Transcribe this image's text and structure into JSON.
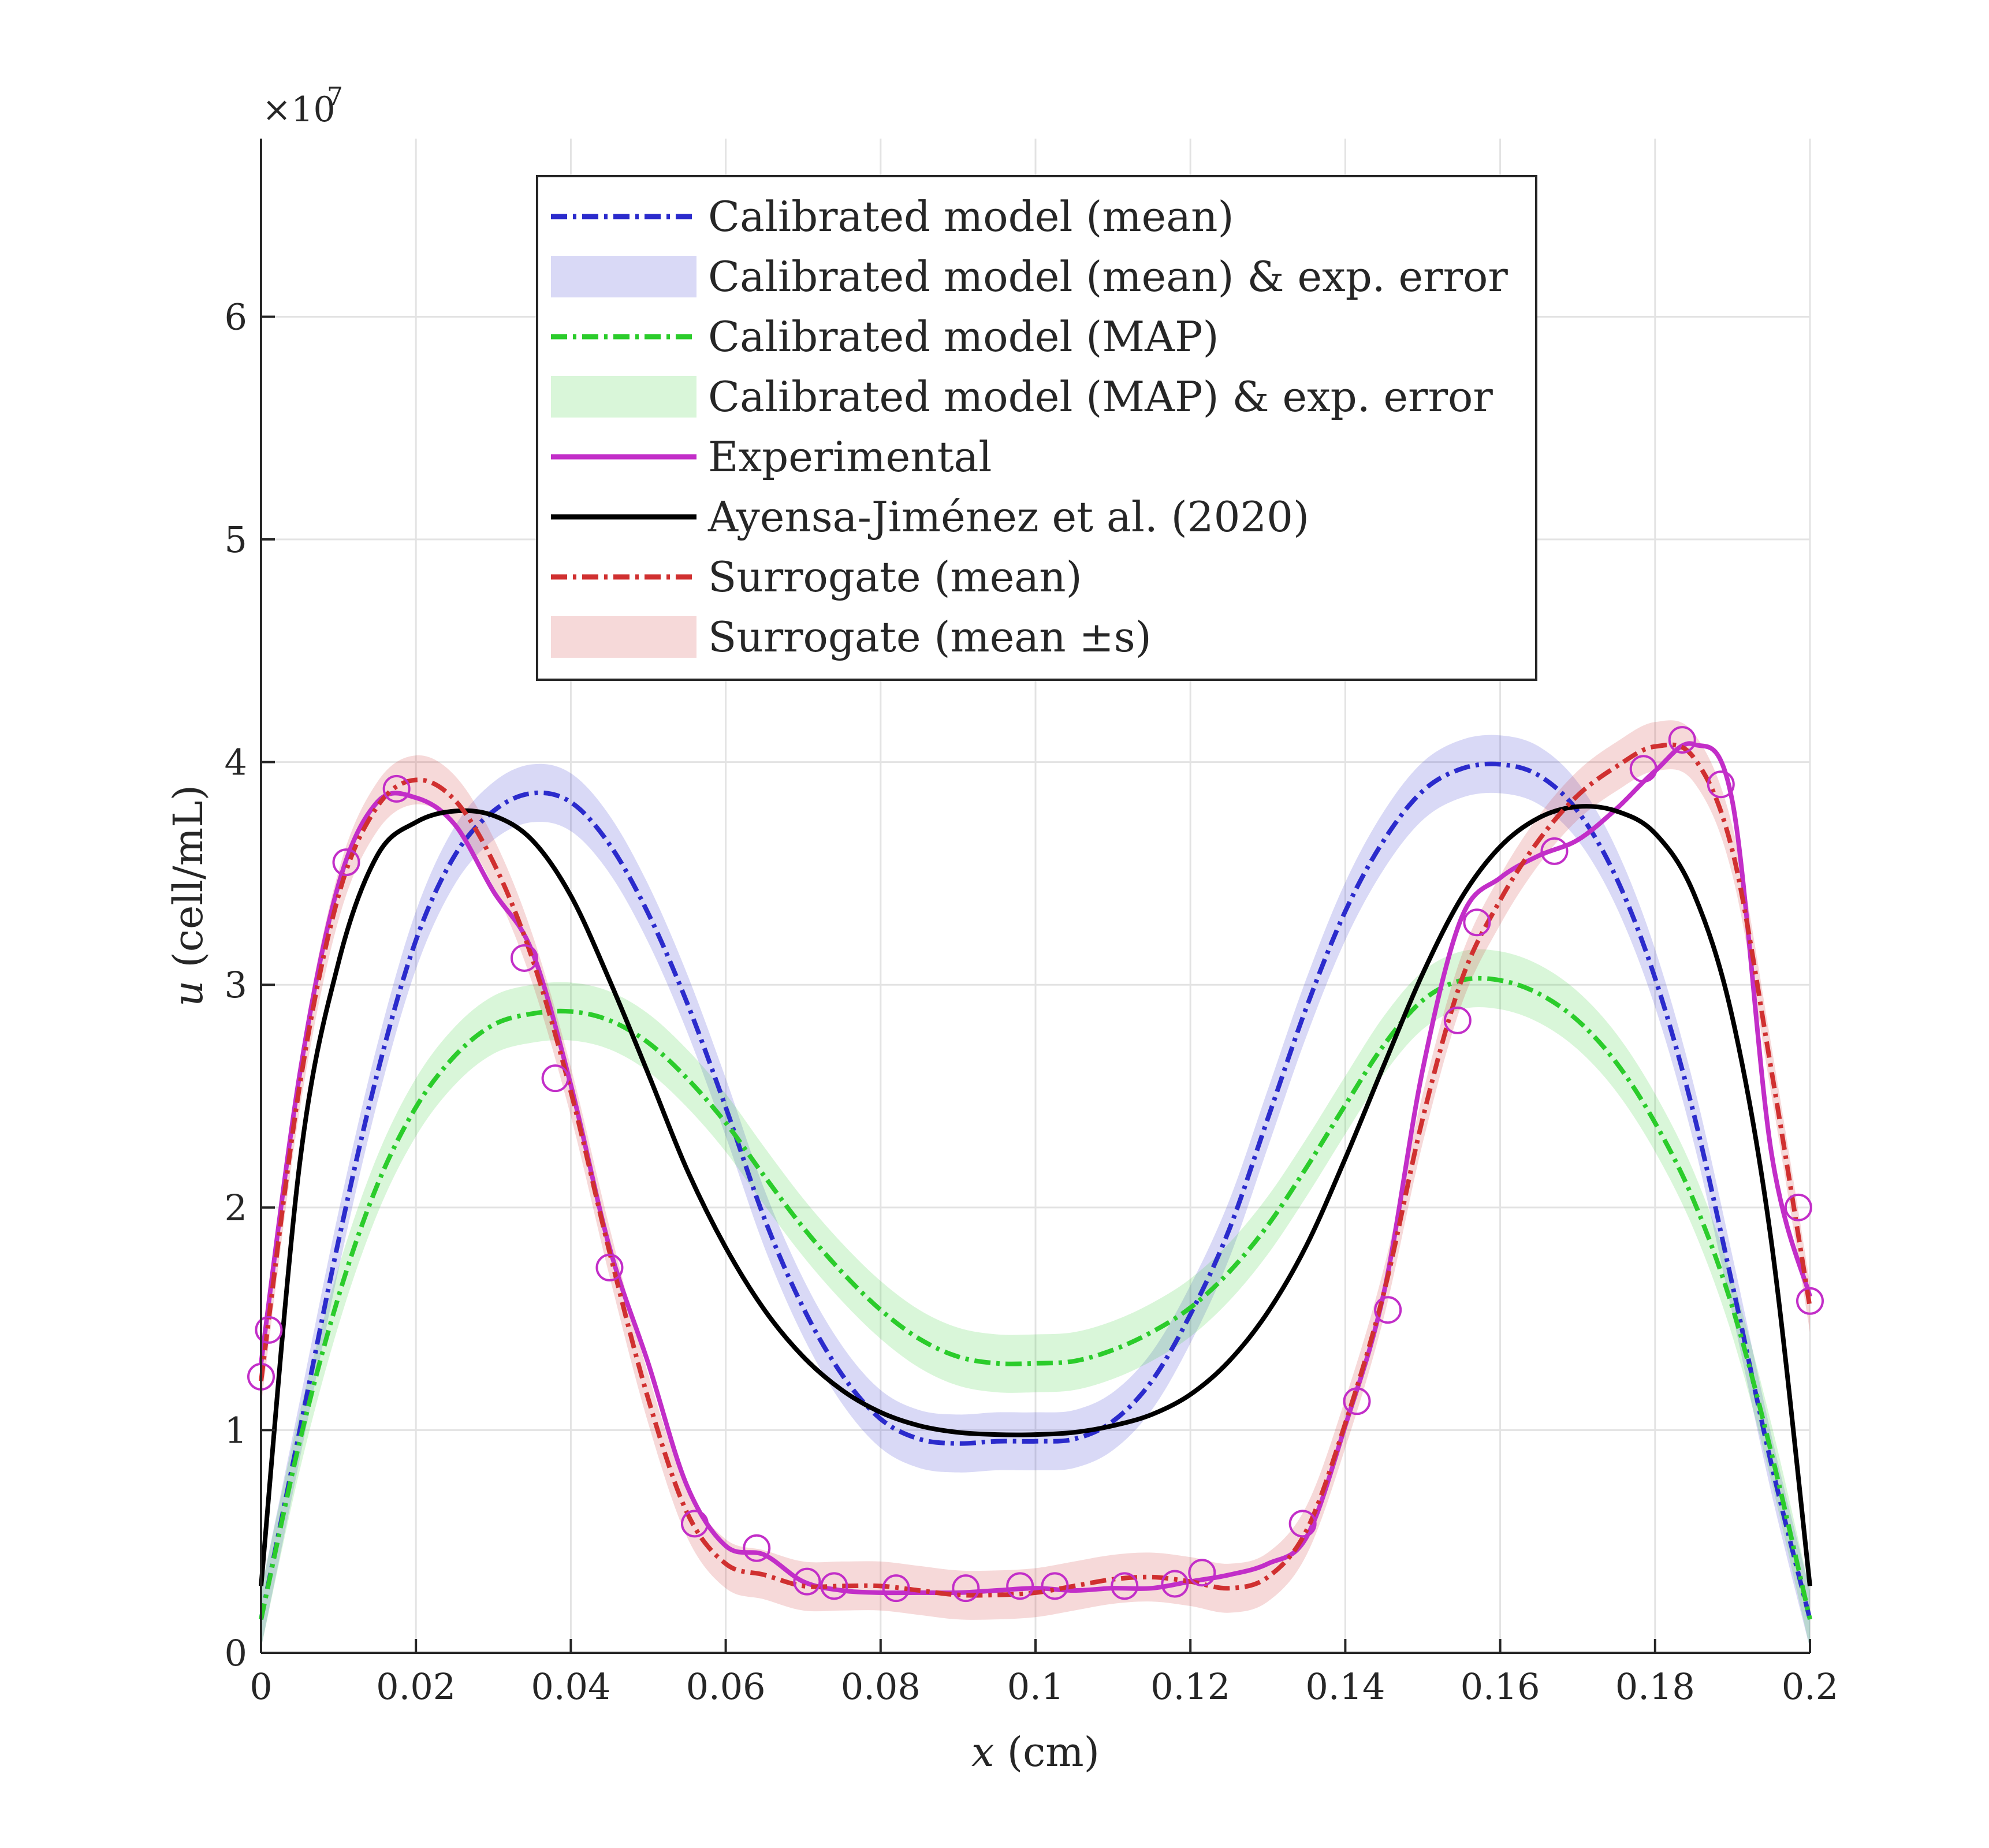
{
  "chart_data": {
    "type": "line",
    "title": "",
    "xlabel": "x (cm)",
    "xlabel_var": "x",
    "xlabel_unit": "(cm)",
    "ylabel": "u (cell/mL)",
    "ylabel_var": "u",
    "ylabel_unit": "(cell/mL)",
    "y_exponent_label": "×10",
    "y_exponent_power": "7",
    "xlim": [
      0,
      0.2
    ],
    "ylim": [
      0,
      6.8
    ],
    "grid": true,
    "legend_position": "top-center",
    "x_ticks": [
      {
        "value": 0,
        "label": "0"
      },
      {
        "value": 0.02,
        "label": "0.02"
      },
      {
        "value": 0.04,
        "label": "0.04"
      },
      {
        "value": 0.06,
        "label": "0.06"
      },
      {
        "value": 0.08,
        "label": "0.08"
      },
      {
        "value": 0.1,
        "label": "0.1"
      },
      {
        "value": 0.12,
        "label": "0.12"
      },
      {
        "value": 0.14,
        "label": "0.14"
      },
      {
        "value": 0.16,
        "label": "0.16"
      },
      {
        "value": 0.18,
        "label": "0.18"
      },
      {
        "value": 0.2,
        "label": "0.2"
      }
    ],
    "y_ticks": [
      {
        "value": 0,
        "label": "0"
      },
      {
        "value": 1,
        "label": "1"
      },
      {
        "value": 2,
        "label": "2"
      },
      {
        "value": 3,
        "label": "3"
      },
      {
        "value": 4,
        "label": "4"
      },
      {
        "value": 5,
        "label": "5"
      },
      {
        "value": 6,
        "label": "6"
      }
    ],
    "x": [
      0,
      0.005,
      0.01,
      0.015,
      0.02,
      0.025,
      0.03,
      0.035,
      0.04,
      0.045,
      0.05,
      0.055,
      0.06,
      0.065,
      0.07,
      0.075,
      0.08,
      0.085,
      0.09,
      0.095,
      0.1,
      0.105,
      0.11,
      0.115,
      0.12,
      0.125,
      0.13,
      0.135,
      0.14,
      0.145,
      0.15,
      0.155,
      0.16,
      0.165,
      0.17,
      0.175,
      0.18,
      0.185,
      0.19,
      0.195,
      0.2
    ],
    "bands": [
      {
        "name": "Calibrated model (mean) & exp. error",
        "color": "#2b2bcc",
        "opacity": 0.18,
        "half_width": 0.13,
        "center_series": "mean"
      },
      {
        "name": "Calibrated model (MAP) & exp. error",
        "color": "#2bcc2b",
        "opacity": 0.18,
        "half_width": 0.13,
        "center_series": "map"
      },
      {
        "name": "Surrogate (mean ±s)",
        "color": "#cc2b2b",
        "opacity": 0.18,
        "half_width": 0.11,
        "center_series": "surrogate"
      }
    ],
    "series": [
      {
        "key": "mean",
        "name": "Calibrated model (mean)",
        "color": "#2b2bcc",
        "dash": "28 10 6 10",
        "width": 8,
        "values": [
          0.15,
          1.0,
          1.85,
          2.6,
          3.2,
          3.58,
          3.78,
          3.86,
          3.82,
          3.63,
          3.32,
          2.92,
          2.45,
          1.95,
          1.55,
          1.25,
          1.05,
          0.96,
          0.94,
          0.95,
          0.95,
          0.96,
          1.04,
          1.22,
          1.52,
          1.9,
          2.4,
          2.9,
          3.33,
          3.65,
          3.87,
          3.97,
          3.99,
          3.94,
          3.78,
          3.48,
          3.03,
          2.42,
          1.65,
          0.85,
          0.15
        ]
      },
      {
        "key": "map",
        "name": "Calibrated model (MAP)",
        "color": "#2bcc2b",
        "dash": "28 10 6 10",
        "width": 8,
        "values": [
          0.15,
          0.95,
          1.6,
          2.1,
          2.45,
          2.68,
          2.82,
          2.87,
          2.88,
          2.84,
          2.74,
          2.58,
          2.38,
          2.14,
          1.91,
          1.71,
          1.54,
          1.41,
          1.33,
          1.3,
          1.3,
          1.31,
          1.36,
          1.44,
          1.55,
          1.71,
          1.92,
          2.18,
          2.46,
          2.73,
          2.93,
          3.02,
          3.02,
          2.96,
          2.84,
          2.65,
          2.38,
          2.03,
          1.55,
          0.9,
          0.15
        ]
      },
      {
        "key": "experimental",
        "name": "Experimental",
        "color": "#c22ec8",
        "dash": "",
        "width": 8,
        "values": [
          1.3,
          2.6,
          3.45,
          3.82,
          3.84,
          3.72,
          3.42,
          3.15,
          2.55,
          1.82,
          1.3,
          0.75,
          0.48,
          0.44,
          0.32,
          0.28,
          0.27,
          0.27,
          0.27,
          0.28,
          0.29,
          0.28,
          0.29,
          0.29,
          0.32,
          0.35,
          0.4,
          0.52,
          1.02,
          1.62,
          2.62,
          3.3,
          3.48,
          3.58,
          3.65,
          3.79,
          3.96,
          4.08,
          3.82,
          2.25,
          1.6
        ]
      },
      {
        "key": "ayensa",
        "name": "Ayensa-Jiménez et al. (2020)",
        "color": "#000000",
        "dash": "",
        "width": 8,
        "values": [
          0.3,
          2.2,
          3.1,
          3.58,
          3.73,
          3.78,
          3.76,
          3.65,
          3.4,
          3.02,
          2.6,
          2.17,
          1.82,
          1.54,
          1.33,
          1.18,
          1.08,
          1.02,
          0.99,
          0.98,
          0.98,
          0.99,
          1.02,
          1.07,
          1.16,
          1.31,
          1.53,
          1.83,
          2.22,
          2.64,
          3.05,
          3.39,
          3.62,
          3.75,
          3.8,
          3.78,
          3.68,
          3.41,
          2.85,
          1.85,
          0.3
        ]
      },
      {
        "key": "surrogate",
        "name": "Surrogate (mean)",
        "color": "#d03030",
        "dash": "28 10 6 10",
        "width": 8,
        "values": [
          1.22,
          2.55,
          3.4,
          3.8,
          3.92,
          3.83,
          3.55,
          3.12,
          2.52,
          1.8,
          1.14,
          0.63,
          0.4,
          0.35,
          0.3,
          0.3,
          0.3,
          0.28,
          0.26,
          0.26,
          0.27,
          0.3,
          0.33,
          0.34,
          0.32,
          0.29,
          0.34,
          0.55,
          1.03,
          1.62,
          2.4,
          3.02,
          3.38,
          3.65,
          3.85,
          3.98,
          4.07,
          4.02,
          3.6,
          2.62,
          1.55
        ]
      }
    ],
    "markers": {
      "name": "Experimental (markers)",
      "color": "#c22ec8",
      "points": [
        {
          "x": 0.0,
          "y": 1.24
        },
        {
          "x": 0.001,
          "y": 1.45
        },
        {
          "x": 0.011,
          "y": 3.55
        },
        {
          "x": 0.0175,
          "y": 3.88
        },
        {
          "x": 0.034,
          "y": 3.12
        },
        {
          "x": 0.038,
          "y": 2.58
        },
        {
          "x": 0.045,
          "y": 1.73
        },
        {
          "x": 0.056,
          "y": 0.58
        },
        {
          "x": 0.064,
          "y": 0.47
        },
        {
          "x": 0.0705,
          "y": 0.32
        },
        {
          "x": 0.074,
          "y": 0.3
        },
        {
          "x": 0.082,
          "y": 0.29
        },
        {
          "x": 0.091,
          "y": 0.29
        },
        {
          "x": 0.098,
          "y": 0.3
        },
        {
          "x": 0.1025,
          "y": 0.3
        },
        {
          "x": 0.1115,
          "y": 0.3
        },
        {
          "x": 0.118,
          "y": 0.31
        },
        {
          "x": 0.1215,
          "y": 0.36
        },
        {
          "x": 0.1345,
          "y": 0.58
        },
        {
          "x": 0.1415,
          "y": 1.13
        },
        {
          "x": 0.1455,
          "y": 1.54
        },
        {
          "x": 0.1545,
          "y": 2.84
        },
        {
          "x": 0.157,
          "y": 3.28
        },
        {
          "x": 0.167,
          "y": 3.6
        },
        {
          "x": 0.1785,
          "y": 3.97
        },
        {
          "x": 0.1835,
          "y": 4.1
        },
        {
          "x": 0.1885,
          "y": 3.9
        },
        {
          "x": 0.1985,
          "y": 2.0
        },
        {
          "x": 0.2,
          "y": 1.58
        }
      ]
    },
    "legend": [
      {
        "label": "Calibrated model (mean)",
        "kind": "line",
        "color": "#2b2bcc",
        "dash": "28 10 6 10"
      },
      {
        "label": "Calibrated model (mean) & exp. error",
        "kind": "band",
        "color": "#2b2bcc"
      },
      {
        "label": "Calibrated model (MAP)",
        "kind": "line",
        "color": "#2bcc2b",
        "dash": "28 10 6 10"
      },
      {
        "label": "Calibrated model (MAP) & exp. error",
        "kind": "band",
        "color": "#2bcc2b"
      },
      {
        "label": "Experimental",
        "kind": "line",
        "color": "#c22ec8",
        "dash": ""
      },
      {
        "label": "Ayensa-Jiménez et al. (2020)",
        "kind": "line",
        "color": "#000000",
        "dash": ""
      },
      {
        "label": "Surrogate (mean)",
        "kind": "line",
        "color": "#d03030",
        "dash": "28 10 6 10"
      },
      {
        "label": "Surrogate (mean ±s)",
        "kind": "band",
        "color": "#cc2b2b"
      }
    ]
  }
}
